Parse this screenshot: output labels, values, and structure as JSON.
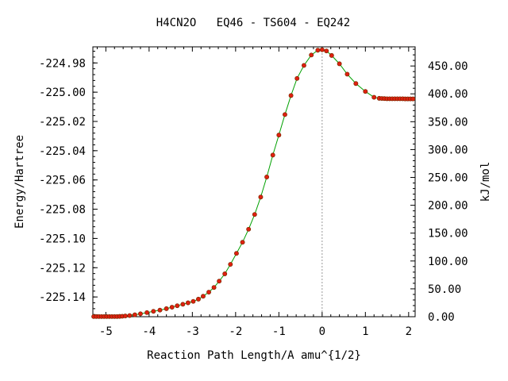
{
  "chart_data": {
    "type": "line",
    "title": "H4CN2O   EQ46 - TS604 - EQ242",
    "xlabel": "Reaction Path Length/A amu^{1/2}",
    "ylabel": "Energy/Hartree",
    "y2label": "kJ/mol",
    "xlim": [
      -5.3,
      2.15
    ],
    "ylim": [
      -225.1535,
      -224.969
    ],
    "y2lim": [
      0,
      484.4
    ],
    "x_ticks": [
      -5,
      -4,
      -3,
      -2,
      -1,
      0,
      1,
      2
    ],
    "x_tick_labels": [
      "-5",
      "-4",
      "-3",
      "-2",
      "-1",
      "0",
      "1",
      "2"
    ],
    "y_ticks": [
      -225.14,
      -225.12,
      -225.1,
      -225.08,
      -225.06,
      -225.04,
      -225.02,
      -225.0,
      -224.98
    ],
    "y_tick_labels": [
      "-225.14",
      "-225.12",
      "-225.10",
      "-225.08",
      "-225.06",
      "-225.04",
      "-225.02",
      "-225.00",
      "-224.98"
    ],
    "y2_ticks": [
      0,
      50,
      100,
      150,
      200,
      250,
      300,
      350,
      400,
      450
    ],
    "y2_tick_labels": [
      "0.00",
      "50.00",
      "100.00",
      "150.00",
      "200.00",
      "250.00",
      "300.00",
      "350.00",
      "400.00",
      "450.00"
    ],
    "ts_x": 0,
    "line_color": "#00a000",
    "marker_color": "#e02010",
    "marker_edge_color": "#7a2a00",
    "ts_line_color": "#999999",
    "series": [
      {
        "x": [
          -5.28,
          -5.22,
          -5.16,
          -5.1,
          -5.04,
          -4.98,
          -4.92,
          -4.86,
          -4.8,
          -4.74,
          -4.68,
          -4.62,
          -4.55,
          -4.45,
          -4.33,
          -4.2,
          -4.05,
          -3.9,
          -3.75,
          -3.6,
          -3.47,
          -3.35,
          -3.22,
          -3.1,
          -2.98,
          -2.86,
          -2.75,
          -2.62,
          -2.5,
          -2.38,
          -2.25,
          -2.12,
          -1.98,
          -1.84,
          -1.7,
          -1.56,
          -1.42,
          -1.28,
          -1.14,
          -1.0,
          -0.86,
          -0.72,
          -0.58,
          -0.42,
          -0.25,
          -0.1,
          0.0,
          0.1,
          0.22,
          0.4,
          0.58,
          0.78,
          1.0,
          1.2,
          1.32,
          1.38,
          1.44,
          1.5,
          1.56,
          1.62,
          1.68,
          1.74,
          1.8,
          1.86,
          1.92,
          1.98,
          2.04,
          2.1
        ],
        "y": [
          -225.1534,
          -225.1534,
          -225.1534,
          -225.1534,
          -225.1534,
          -225.1534,
          -225.1534,
          -225.1534,
          -225.1534,
          -225.1534,
          -225.1533,
          -225.1532,
          -225.153,
          -225.1527,
          -225.1522,
          -225.1515,
          -225.1507,
          -225.1498,
          -225.149,
          -225.148,
          -225.147,
          -225.146,
          -225.145,
          -225.144,
          -225.143,
          -225.1415,
          -225.1395,
          -225.1367,
          -225.1335,
          -225.1292,
          -225.1242,
          -225.1177,
          -225.1102,
          -225.1026,
          -225.0937,
          -225.0836,
          -225.0717,
          -225.058,
          -225.043,
          -225.0293,
          -225.0153,
          -225.0023,
          -224.9906,
          -224.9817,
          -224.9746,
          -224.9713,
          -224.971,
          -224.9718,
          -224.9749,
          -224.9806,
          -224.9877,
          -224.9941,
          -224.9995,
          -225.0035,
          -225.0042,
          -225.0043,
          -225.0044,
          -225.0045,
          -225.0045,
          -225.0045,
          -225.0045,
          -225.0045,
          -225.0045,
          -225.0045,
          -225.0046,
          -225.0046,
          -225.0046,
          -225.0046
        ]
      }
    ]
  }
}
